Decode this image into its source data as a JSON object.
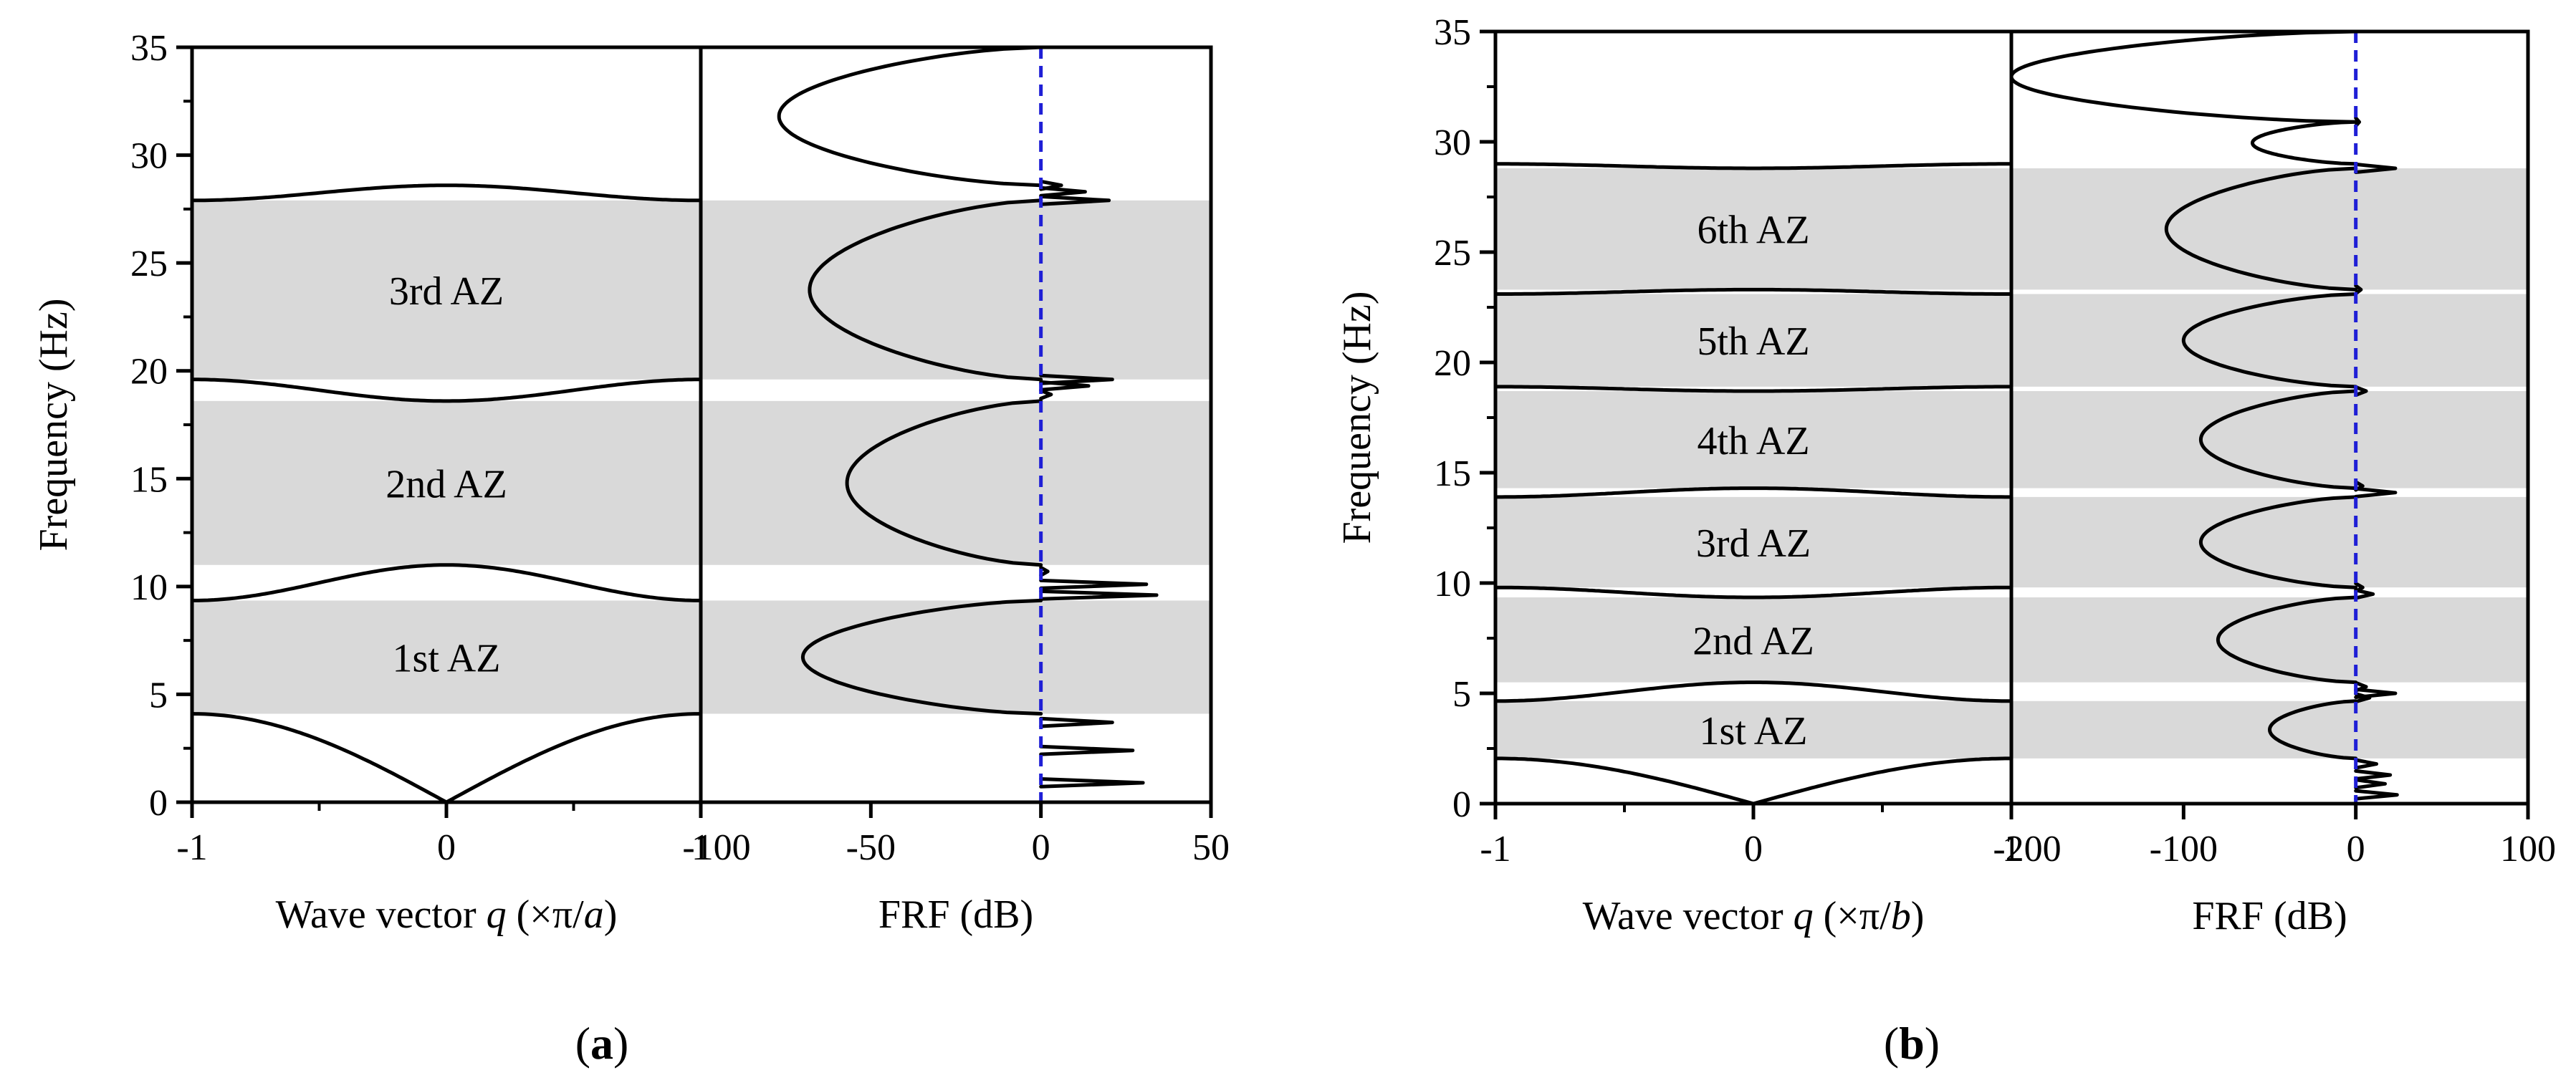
{
  "colors": {
    "band": "#d9d9d9",
    "curve": "#000000",
    "reference": "#1f1fd6"
  },
  "chart_data": [
    {
      "panel": "a",
      "panel_label": "(a)",
      "type": "line",
      "ylabel": "Frequency (Hz)",
      "ylim": [
        0,
        35
      ],
      "yticks": [
        0,
        5,
        10,
        15,
        20,
        25,
        30,
        35
      ],
      "dispersion": {
        "xlabel": "Wave vector q (×π/a)",
        "xlabel_parts": [
          "Wave vector ",
          "q",
          " (×π/",
          "a",
          ")"
        ],
        "xlim": [
          -1,
          1
        ],
        "xticks": [
          -1,
          0,
          1
        ],
        "branches": [
          {
            "name": "1st branch",
            "f_q0": 0.0,
            "f_q1": 4.1,
            "shape": "acoustic"
          },
          {
            "name": "2nd branch",
            "f_q0": 11.0,
            "f_q1": 9.35,
            "shape": "optical"
          },
          {
            "name": "3rd branch",
            "f_q0": 18.6,
            "f_q1": 19.6,
            "shape": "optical"
          },
          {
            "name": "4th branch",
            "f_q0": 28.6,
            "f_q1": 27.9,
            "shape": "optical"
          }
        ]
      },
      "frf": {
        "xlabel": "FRF (dB)",
        "xlim": [
          -100,
          50
        ],
        "xticks": [
          -100,
          -50,
          0,
          50
        ],
        "reference_line_db": 0,
        "attenuation_dips": [
          {
            "f_from": 4.1,
            "f_to": 9.35,
            "min_db": -70
          },
          {
            "f_from": 11.0,
            "f_to": 18.6,
            "min_db": -57
          },
          {
            "f_from": 19.6,
            "f_to": 27.9,
            "min_db": -68
          },
          {
            "f_from": 28.6,
            "f_to": 35.0,
            "min_db": -77
          }
        ],
        "resonance_peaks": [
          {
            "f": 0.9,
            "db": 30
          },
          {
            "f": 2.4,
            "db": 27
          },
          {
            "f": 3.7,
            "db": 21
          },
          {
            "f": 9.6,
            "db": 34
          },
          {
            "f": 10.1,
            "db": 31
          },
          {
            "f": 10.7,
            "db": 2
          },
          {
            "f": 18.9,
            "db": 3
          },
          {
            "f": 19.3,
            "db": 14
          },
          {
            "f": 19.6,
            "db": 21
          },
          {
            "f": 27.9,
            "db": 20
          },
          {
            "f": 28.3,
            "db": 13
          },
          {
            "f": 28.6,
            "db": 6
          }
        ]
      },
      "bands": [
        {
          "label": "1st AZ",
          "from": 4.1,
          "to": 9.35
        },
        {
          "label": "2nd AZ",
          "from": 11.0,
          "to": 18.6
        },
        {
          "label": "3rd AZ",
          "from": 19.6,
          "to": 27.9
        }
      ]
    },
    {
      "panel": "b",
      "panel_label": "(b)",
      "type": "line",
      "ylabel": "Frequency (Hz)",
      "ylim": [
        0,
        35
      ],
      "yticks": [
        0,
        5,
        10,
        15,
        20,
        25,
        30,
        35
      ],
      "dispersion": {
        "xlabel": "Wave vector q (×π/b)",
        "xlabel_parts": [
          "Wave vector ",
          "q",
          " (×π/",
          "b",
          ")"
        ],
        "xlim": [
          -1,
          1
        ],
        "xticks": [
          -1,
          0,
          1
        ],
        "branches": [
          {
            "name": "1st branch",
            "f_q0": 0.0,
            "f_q1": 2.05,
            "shape": "acoustic"
          },
          {
            "name": "2nd branch",
            "f_q0": 5.5,
            "f_q1": 4.65,
            "shape": "optical"
          },
          {
            "name": "3rd branch",
            "f_q0": 9.35,
            "f_q1": 9.8,
            "shape": "optical"
          },
          {
            "name": "4th branch",
            "f_q0": 14.3,
            "f_q1": 13.9,
            "shape": "optical"
          },
          {
            "name": "5th branch",
            "f_q0": 18.7,
            "f_q1": 18.9,
            "shape": "optical"
          },
          {
            "name": "6th branch",
            "f_q0": 23.3,
            "f_q1": 23.1,
            "shape": "optical"
          },
          {
            "name": "7th branch",
            "f_q0": 28.8,
            "f_q1": 29.0,
            "shape": "optical"
          }
        ]
      },
      "frf": {
        "xlabel": "FRF (dB)",
        "xlim": [
          -200,
          100
        ],
        "xticks": [
          -200,
          -100,
          0,
          100
        ],
        "reference_line_db": 0,
        "attenuation_dips": [
          {
            "f_from": 2.05,
            "f_to": 4.65,
            "min_db": -50
          },
          {
            "f_from": 5.5,
            "f_to": 9.35,
            "min_db": -80
          },
          {
            "f_from": 9.8,
            "f_to": 13.9,
            "min_db": -90
          },
          {
            "f_from": 14.3,
            "f_to": 18.7,
            "min_db": -90
          },
          {
            "f_from": 18.9,
            "f_to": 23.1,
            "min_db": -100
          },
          {
            "f_from": 23.3,
            "f_to": 28.8,
            "min_db": -110
          },
          {
            "f_from": 29.0,
            "f_to": 30.9,
            "min_db": -60
          },
          {
            "f_from": 30.9,
            "f_to": 35.0,
            "min_db": -200
          }
        ],
        "resonance_peaks": [
          {
            "f": 0.4,
            "db": 24
          },
          {
            "f": 0.9,
            "db": 17
          },
          {
            "f": 1.3,
            "db": 20
          },
          {
            "f": 1.8,
            "db": 12
          },
          {
            "f": 4.8,
            "db": 8
          },
          {
            "f": 5.0,
            "db": 23
          },
          {
            "f": 5.3,
            "db": 6
          },
          {
            "f": 9.5,
            "db": 10
          },
          {
            "f": 9.8,
            "db": 4
          },
          {
            "f": 14.1,
            "db": 23
          },
          {
            "f": 14.4,
            "db": 4
          },
          {
            "f": 18.7,
            "db": 6
          },
          {
            "f": 23.3,
            "db": 3
          },
          {
            "f": 28.8,
            "db": 23
          },
          {
            "f": 30.9,
            "db": 2
          }
        ]
      },
      "bands": [
        {
          "label": "1st AZ",
          "from": 2.05,
          "to": 4.65
        },
        {
          "label": "2nd AZ",
          "from": 5.5,
          "to": 9.35
        },
        {
          "label": "3rd AZ",
          "from": 9.8,
          "to": 13.9
        },
        {
          "label": "4th AZ",
          "from": 14.3,
          "to": 18.7
        },
        {
          "label": "5th AZ",
          "from": 18.9,
          "to": 23.1
        },
        {
          "label": "6th AZ",
          "from": 23.3,
          "to": 28.8
        }
      ]
    }
  ]
}
